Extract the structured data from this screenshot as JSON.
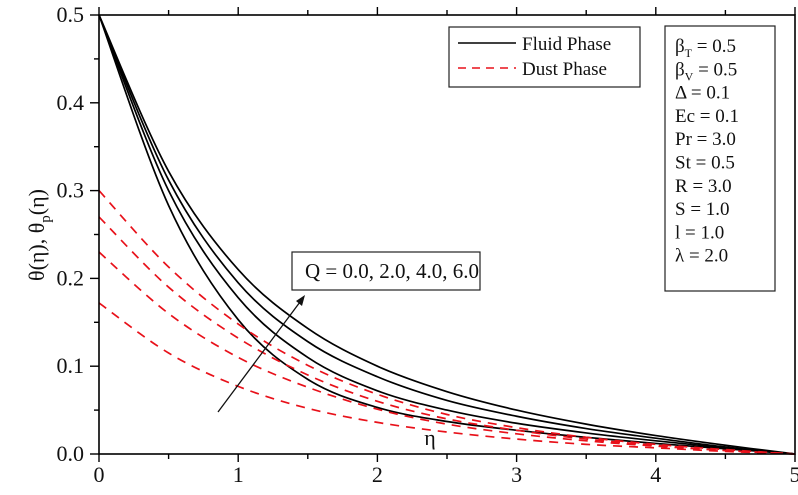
{
  "chart_data": {
    "type": "line",
    "title": "",
    "xlabel": "η",
    "ylabel": "θ(η), θp(η)",
    "xlim": [
      0,
      5
    ],
    "ylim": [
      0,
      0.5
    ],
    "xticks": [
      "0",
      "1",
      "2",
      "3",
      "4",
      "5"
    ],
    "yticks": [
      "0.0",
      "0.1",
      "0.2",
      "0.3",
      "0.4",
      "0.5"
    ],
    "grid": false,
    "legend": {
      "position": "upper-center-right",
      "entries": [
        {
          "label": "Fluid Phase",
          "style": "solid",
          "color": "#000000"
        },
        {
          "label": "Dust Phase",
          "style": "dashed",
          "color": "#e8111a"
        }
      ]
    },
    "parameters_box": [
      {
        "symbol": "β",
        "sub": "T",
        "value": " = 0.5"
      },
      {
        "symbol": "β",
        "sub": "V",
        "value": " = 0.5"
      },
      {
        "symbol": "Δ",
        "sub": "",
        "value": " = 0.1"
      },
      {
        "symbol": "Ec",
        "sub": "",
        "value": " = 0.1"
      },
      {
        "symbol": "Pr",
        "sub": "",
        "value": " = 3.0"
      },
      {
        "symbol": "St",
        "sub": "",
        "value": " = 0.5"
      },
      {
        "symbol": "R",
        "sub": "",
        "value": " = 3.0"
      },
      {
        "symbol": "S",
        "sub": "",
        "value": " = 1.0"
      },
      {
        "symbol": "l",
        "sub": "",
        "value": " = 1.0"
      },
      {
        "symbol": "λ",
        "sub": "",
        "value": " = 2.0"
      }
    ],
    "annotation": {
      "text": "Q = 0.0, 2.0, 4.0, 6.0",
      "arrow_direction": "increasing Q upward"
    },
    "x": [
      0,
      0.5,
      1.0,
      1.5,
      2.0,
      2.5,
      3.0,
      3.5,
      4.0,
      4.5,
      5.0
    ],
    "series": [
      {
        "name": "Fluid Phase, Q = 0.0",
        "phase": "fluid",
        "Q": 0.0,
        "values": [
          0.5,
          0.283,
          0.153,
          0.085,
          0.053,
          0.037,
          0.027,
          0.019,
          0.012,
          0.006,
          0.0
        ]
      },
      {
        "name": "Fluid Phase, Q = 2.0",
        "phase": "fluid",
        "Q": 2.0,
        "values": [
          0.5,
          0.3,
          0.178,
          0.11,
          0.072,
          0.05,
          0.035,
          0.024,
          0.015,
          0.007,
          0.0
        ]
      },
      {
        "name": "Fluid Phase, Q = 4.0",
        "phase": "fluid",
        "Q": 4.0,
        "values": [
          0.5,
          0.312,
          0.195,
          0.128,
          0.088,
          0.061,
          0.043,
          0.029,
          0.018,
          0.008,
          0.0
        ]
      },
      {
        "name": "Fluid Phase, Q = 6.0",
        "phase": "fluid",
        "Q": 6.0,
        "values": [
          0.5,
          0.322,
          0.21,
          0.143,
          0.1,
          0.071,
          0.05,
          0.034,
          0.021,
          0.01,
          0.0
        ]
      },
      {
        "name": "Dust Phase, Q = 0.0",
        "phase": "dust",
        "Q": 0.0,
        "values": [
          0.172,
          0.115,
          0.077,
          0.052,
          0.036,
          0.025,
          0.017,
          0.011,
          0.007,
          0.003,
          0.0
        ]
      },
      {
        "name": "Dust Phase, Q = 2.0",
        "phase": "dust",
        "Q": 2.0,
        "values": [
          0.23,
          0.16,
          0.11,
          0.076,
          0.051,
          0.034,
          0.023,
          0.015,
          0.009,
          0.004,
          0.0
        ]
      },
      {
        "name": "Dust Phase, Q = 4.0",
        "phase": "dust",
        "Q": 4.0,
        "values": [
          0.27,
          0.19,
          0.132,
          0.09,
          0.06,
          0.04,
          0.027,
          0.017,
          0.01,
          0.004,
          0.0
        ]
      },
      {
        "name": "Dust Phase, Q = 6.0",
        "phase": "dust",
        "Q": 6.0,
        "values": [
          0.3,
          0.213,
          0.148,
          0.101,
          0.068,
          0.045,
          0.03,
          0.019,
          0.011,
          0.005,
          0.0
        ]
      }
    ]
  },
  "colors": {
    "fluid": "#000000",
    "dust": "#e8111a",
    "axis": "#000000"
  }
}
